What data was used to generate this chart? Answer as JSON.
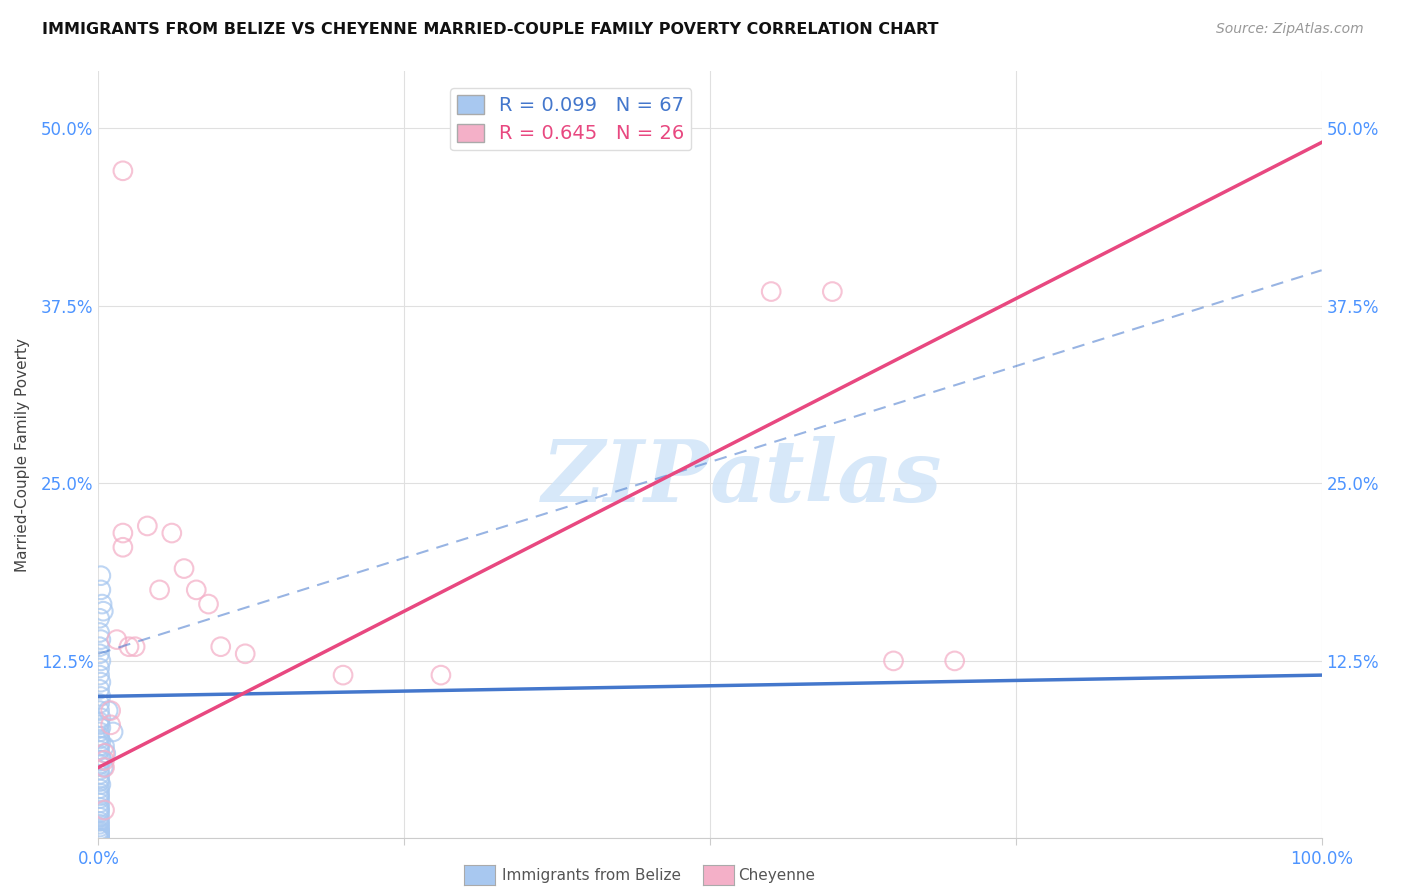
{
  "title": "IMMIGRANTS FROM BELIZE VS CHEYENNE MARRIED-COUPLE FAMILY POVERTY CORRELATION CHART",
  "source": "Source: ZipAtlas.com",
  "ylabel": "Married-Couple Family Poverty",
  "xlim": [
    0,
    1.0
  ],
  "ylim": [
    0,
    0.54
  ],
  "xticks": [
    0.0,
    0.25,
    0.5,
    0.75,
    1.0
  ],
  "xtick_labels": [
    "0.0%",
    "",
    "",
    "",
    "100.0%"
  ],
  "yticks": [
    0.0,
    0.125,
    0.25,
    0.375,
    0.5
  ],
  "ytick_labels": [
    "",
    "12.5%",
    "25.0%",
    "37.5%",
    "50.0%"
  ],
  "blue_R": 0.099,
  "blue_N": 67,
  "pink_R": 0.645,
  "pink_N": 26,
  "background_color": "#ffffff",
  "grid_color": "#e0e0e0",
  "blue_color": "#a8c8f0",
  "blue_line_color": "#4477cc",
  "pink_color": "#f4b0c8",
  "pink_line_color": "#e84880",
  "watermark_color": "#d0e4f8",
  "blue_scatter_x": [
    0.002,
    0.002,
    0.003,
    0.004,
    0.001,
    0.001,
    0.002,
    0.001,
    0.001,
    0.002,
    0.001,
    0.001,
    0.002,
    0.001,
    0.002,
    0.001,
    0.001,
    0.002,
    0.001,
    0.001,
    0.002,
    0.001,
    0.001,
    0.001,
    0.002,
    0.001,
    0.001,
    0.002,
    0.001,
    0.001,
    0.001,
    0.001,
    0.001,
    0.001,
    0.002,
    0.001,
    0.001,
    0.001,
    0.001,
    0.001,
    0.001,
    0.001,
    0.001,
    0.001,
    0.001,
    0.001,
    0.001,
    0.001,
    0.001,
    0.001,
    0.001,
    0.001,
    0.001,
    0.001,
    0.001,
    0.001,
    0.001,
    0.001,
    0.001,
    0.001,
    0.001,
    0.008,
    0.012,
    0.005,
    0.006,
    0.003,
    0.004
  ],
  "blue_scatter_y": [
    0.185,
    0.175,
    0.165,
    0.16,
    0.155,
    0.145,
    0.14,
    0.135,
    0.13,
    0.125,
    0.12,
    0.115,
    0.11,
    0.105,
    0.1,
    0.095,
    0.09,
    0.085,
    0.082,
    0.08,
    0.078,
    0.075,
    0.072,
    0.07,
    0.068,
    0.065,
    0.062,
    0.058,
    0.055,
    0.052,
    0.048,
    0.045,
    0.042,
    0.04,
    0.038,
    0.035,
    0.032,
    0.03,
    0.028,
    0.025,
    0.022,
    0.02,
    0.018,
    0.015,
    0.012,
    0.01,
    0.008,
    0.006,
    0.005,
    0.004,
    0.003,
    0.002,
    0.001,
    0.0,
    0.0,
    0.0,
    0.0,
    0.0,
    0.0,
    0.0,
    0.0,
    0.09,
    0.075,
    0.065,
    0.06,
    0.055,
    0.05
  ],
  "pink_scatter_x": [
    0.005,
    0.005,
    0.005,
    0.005,
    0.01,
    0.01,
    0.015,
    0.02,
    0.02,
    0.025,
    0.03,
    0.04,
    0.05,
    0.06,
    0.07,
    0.08,
    0.09,
    0.1,
    0.12,
    0.2,
    0.28,
    0.55,
    0.6,
    0.65,
    0.7,
    0.02
  ],
  "pink_scatter_y": [
    0.06,
    0.055,
    0.05,
    0.02,
    0.09,
    0.08,
    0.14,
    0.215,
    0.205,
    0.135,
    0.135,
    0.22,
    0.175,
    0.215,
    0.19,
    0.175,
    0.165,
    0.135,
    0.13,
    0.115,
    0.115,
    0.385,
    0.385,
    0.125,
    0.125,
    0.47
  ],
  "pink_line_intercept": 0.05,
  "pink_line_slope": 0.44,
  "blue_line_intercept": 0.1,
  "blue_line_slope": 0.015,
  "blue_dash_intercept": 0.13,
  "blue_dash_slope": 0.27
}
